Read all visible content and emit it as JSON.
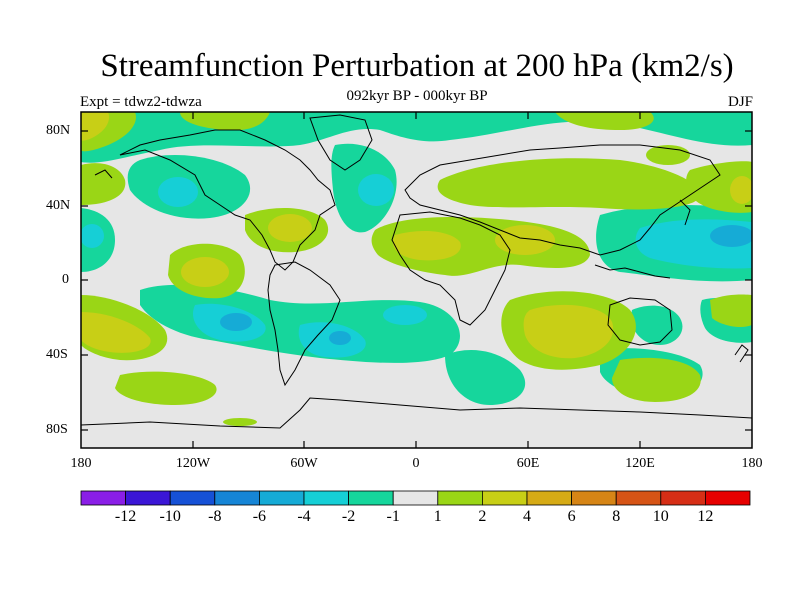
{
  "title": "Streamfunction Perturbation at 200 hPa (km2/s)",
  "subtitle": "092kyr BP - 000kyr BP",
  "left_label": "Expt = tdwz2-tdwza",
  "right_label": "DJF",
  "lat_ticks": [
    "80N",
    "40N",
    "0",
    "40S",
    "80S"
  ],
  "lon_ticks": [
    "180",
    "120W",
    "60W",
    "0",
    "60E",
    "120E",
    "180"
  ],
  "colorbar": {
    "labels": [
      "-12",
      "-10",
      "-8",
      "-6",
      "-4",
      "-2",
      "-1",
      "1",
      "2",
      "4",
      "6",
      "8",
      "10",
      "12"
    ],
    "colors": [
      "#8a1ee6",
      "#3b16d6",
      "#1651d6",
      "#1685d6",
      "#16abd6",
      "#16cfd6",
      "#16d69c",
      "#e6e6e6",
      "#9ad616",
      "#c8cf16",
      "#d6ab16",
      "#d68516",
      "#d65416",
      "#d62e16",
      "#e60000"
    ]
  },
  "colors": {
    "neg_2_1": "#16d69c",
    "neg_4_2": "#16cfd6",
    "neg_6_4": "#16abd6",
    "pos_1_2": "#9ad616",
    "pos_2_4": "#c8cf16",
    "background": "#e6e6e6"
  }
}
